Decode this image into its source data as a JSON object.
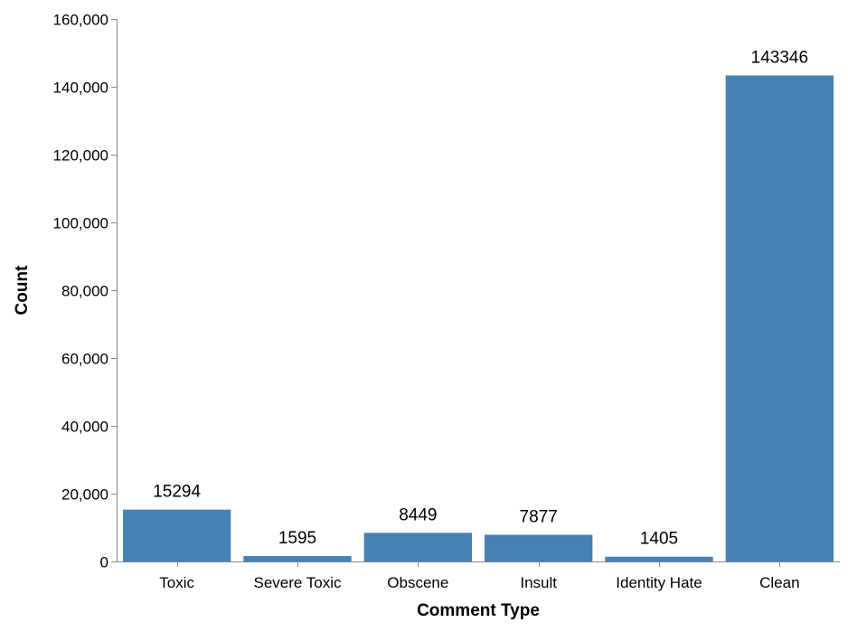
{
  "chart_data": {
    "type": "bar",
    "categories": [
      "Toxic",
      "Severe Toxic",
      "Obscene",
      "Insult",
      "Identity Hate",
      "Clean"
    ],
    "values": [
      15294,
      1595,
      8449,
      7877,
      1405,
      143346
    ],
    "value_labels": [
      "15294",
      "1595",
      "8449",
      "7877",
      "1405",
      "143346"
    ],
    "xlabel": "Comment Type",
    "ylabel": "Count",
    "ylim": [
      0,
      160000
    ],
    "y_ticks": [
      0,
      20000,
      40000,
      60000,
      80000,
      100000,
      120000,
      140000,
      160000
    ],
    "y_tick_labels": [
      "0",
      "20,000",
      "40,000",
      "60,000",
      "80,000",
      "100,000",
      "120,000",
      "140,000",
      "160,000"
    ],
    "grid": false,
    "legend": "none",
    "bar_color": "#4682b4",
    "axis_color": "#888888"
  }
}
